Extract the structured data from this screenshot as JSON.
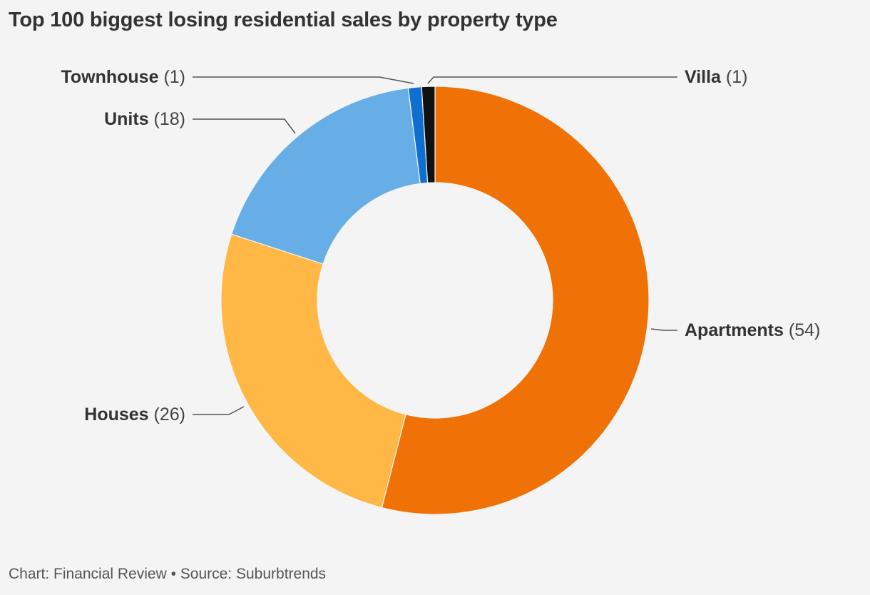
{
  "chart_data": {
    "type": "pie",
    "title": "Top 100 biggest losing residential sales by property type",
    "slices": [
      {
        "label": "Apartments",
        "value": 54,
        "count_text": "(54)",
        "color": "#f07207"
      },
      {
        "label": "Houses",
        "value": 26,
        "count_text": "(26)",
        "color": "#ffb845"
      },
      {
        "label": "Units",
        "value": 18,
        "count_text": "(18)",
        "color": "#67aee6"
      },
      {
        "label": "Townhouse",
        "value": 1,
        "count_text": "(1)",
        "color": "#0f6fcf"
      },
      {
        "label": "Villa",
        "value": 1,
        "count_text": "(1)",
        "color": "#111111"
      }
    ],
    "donut": true,
    "footer": "Chart: Financial Review • Source: Suburbtrends"
  },
  "colors": {
    "background": "#f4f4f4",
    "leader_line": "#555555"
  }
}
